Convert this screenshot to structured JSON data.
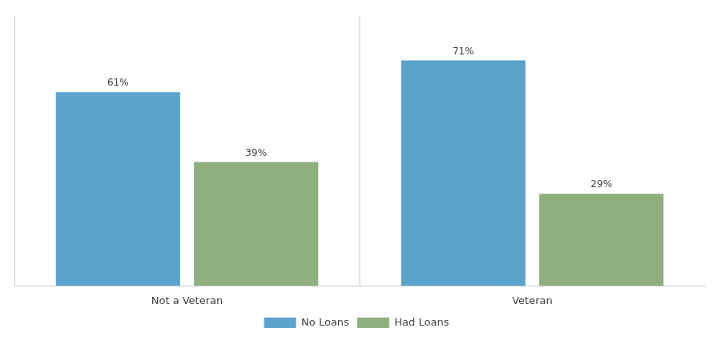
{
  "chart_data": {
    "type": "bar",
    "categories": [
      "Not a Veteran",
      "Veteran"
    ],
    "series": [
      {
        "name": "No Loans",
        "color": "#5BA3C9",
        "values": [
          61,
          71
        ],
        "value_labels": [
          "61%",
          "71%"
        ]
      },
      {
        "name": "Had Loans",
        "color": "#8FAF7E",
        "values": [
          39,
          29
        ],
        "value_labels": [
          "39%",
          "29%"
        ]
      }
    ],
    "ylim": [
      0,
      85
    ],
    "grid": false,
    "legend": "bottom",
    "data_labels": true,
    "tick_labels": "x"
  }
}
